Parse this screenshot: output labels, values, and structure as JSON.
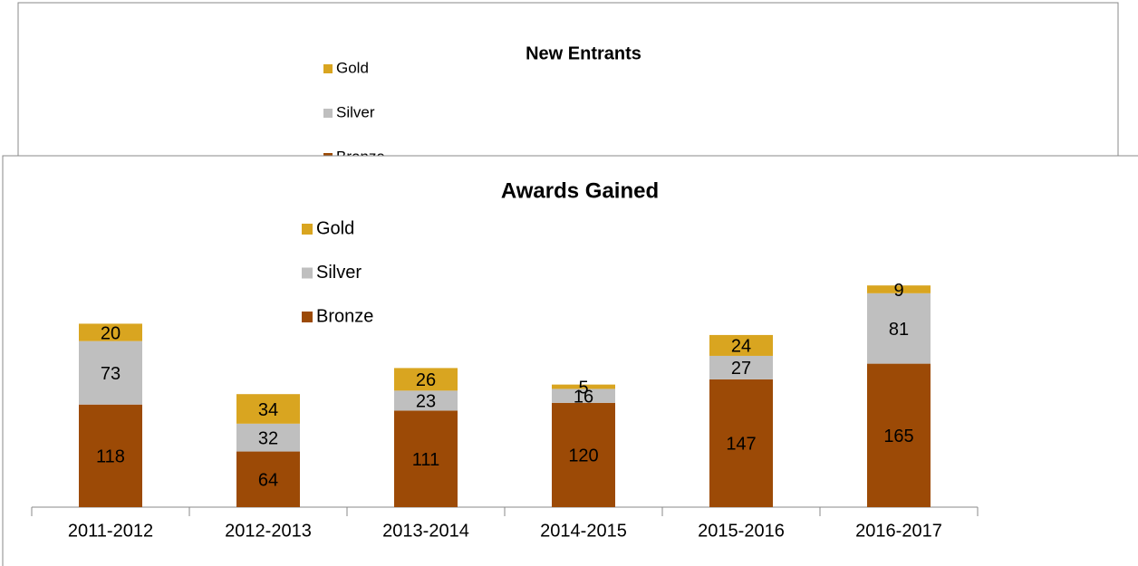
{
  "back_panel": {
    "title": "New Entrants",
    "legend": [
      {
        "name": "Gold",
        "color": "#d9a520"
      },
      {
        "name": "Silver",
        "color": "#bfbfbf"
      },
      {
        "name": "Bronze",
        "color": "#9c4a06"
      }
    ]
  },
  "chart_data": {
    "type": "bar",
    "stacked": true,
    "title": "Awards Gained",
    "categories": [
      "2011-2012",
      "2012-2013",
      "2013-2014",
      "2014-2015",
      "2015-2016",
      "2016-2017"
    ],
    "series": [
      {
        "name": "Bronze",
        "color": "#9c4a06",
        "values": [
          118,
          64,
          111,
          120,
          147,
          165
        ]
      },
      {
        "name": "Silver",
        "color": "#bfbfbf",
        "values": [
          73,
          32,
          23,
          16,
          27,
          81
        ]
      },
      {
        "name": "Gold",
        "color": "#d9a520",
        "values": [
          20,
          34,
          26,
          5,
          24,
          9
        ]
      }
    ],
    "ylim": [
      0,
      275
    ],
    "legend": "top-left",
    "grid": false
  }
}
